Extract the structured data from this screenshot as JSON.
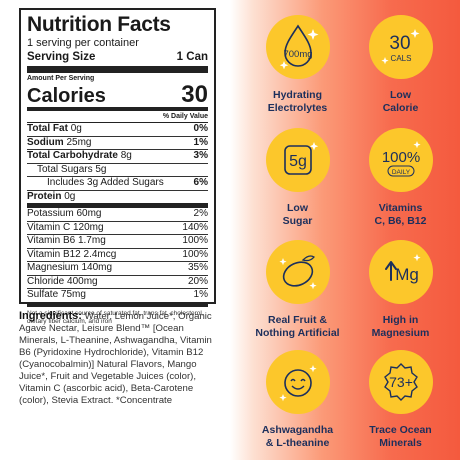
{
  "panel": {
    "title": "Nutrition Facts",
    "servings": "1 serving per container",
    "serving_size_label": "Serving Size",
    "serving_size_value": "1 Can",
    "amount_per": "Amount Per Serving",
    "calories_label": "Calories",
    "calories_value": "30",
    "dv_header": "% Daily Value",
    "rows": [
      {
        "name": "Total Fat",
        "amount": "0g",
        "dv": "0%"
      },
      {
        "name": "Sodium",
        "amount": "25mg",
        "dv": "1%"
      },
      {
        "name": "Total Carbohydrate",
        "amount": "8g",
        "dv": "3%"
      },
      {
        "name": "Total Sugars",
        "amount": "5g",
        "dv": ""
      },
      {
        "name": "Includes 3g Added Sugars",
        "amount": "",
        "dv": "6%"
      },
      {
        "name": "Protein",
        "amount": "0g",
        "dv": ""
      },
      {
        "name": "Potassium",
        "amount": "60mg",
        "dv": "2%"
      },
      {
        "name": "Vitamin C",
        "amount": "120mg",
        "dv": "140%"
      },
      {
        "name": "Vitamin B6",
        "amount": "1.7mg",
        "dv": "100%"
      },
      {
        "name": "Vitamin B12",
        "amount": "2.4mcg",
        "dv": "100%"
      },
      {
        "name": "Magnesium",
        "amount": "140mg",
        "dv": "35%"
      },
      {
        "name": "Chloride",
        "amount": "400mg",
        "dv": "20%"
      },
      {
        "name": "Sulfate",
        "amount": "75mg",
        "dv": "1%"
      }
    ],
    "footnote": "Not a significant source of saturated fat, trans fat, cholesterol, dietary fiber calcium, and iron"
  },
  "ingredients": {
    "label": "Ingredients:",
    "text": "Water, Lemon Juice*, Organic Agave Nectar, Leisure Blend™ [Ocean Minerals, L-Theanine, Ashwagandha, Vitamin B6 (Pyridoxine Hydrochloride), Vitamin B12 (Cyanocobalmin)] Natural Flavors, Mango Juice*, Fruit and Vegetable Juices (color), Vitamin C (ascorbic acid), Beta-Carotene (color), Stevia Extract. *Concentrate"
  },
  "badges": [
    {
      "icon_name": "electrolyte-drop-icon",
      "icon_text": "700mg",
      "label_1": "Hydrating",
      "label_2": "Electrolytes"
    },
    {
      "icon_name": "calories-icon",
      "icon_text": "30",
      "icon_sub": "CALS",
      "label_1": "Low",
      "label_2": "Calorie"
    },
    {
      "icon_name": "sugar-icon",
      "icon_text": "5g",
      "label_1": "Low",
      "label_2": "Sugar"
    },
    {
      "icon_name": "daily-value-icon",
      "icon_text": "100%",
      "icon_sub": "DAILY",
      "label_1": "Vitamins",
      "label_2": "C, B6, B12"
    },
    {
      "icon_name": "lemon-icon",
      "label_1": "Real Fruit &",
      "label_2": "Nothing Artificial"
    },
    {
      "icon_name": "magnesium-icon",
      "icon_text": "Mg",
      "label_1": "High in",
      "label_2": "Magnesium"
    },
    {
      "icon_name": "smiley-icon",
      "label_1": "Ashwagandha",
      "label_2": "& L-theanine"
    },
    {
      "icon_name": "minerals-icon",
      "icon_text": "73+",
      "label_1": "Trace Ocean",
      "label_2": "Minerals"
    }
  ],
  "colors": {
    "badge": "#fcc72b",
    "label": "#1c2f5c",
    "accent_orange": "#f45a3e"
  }
}
